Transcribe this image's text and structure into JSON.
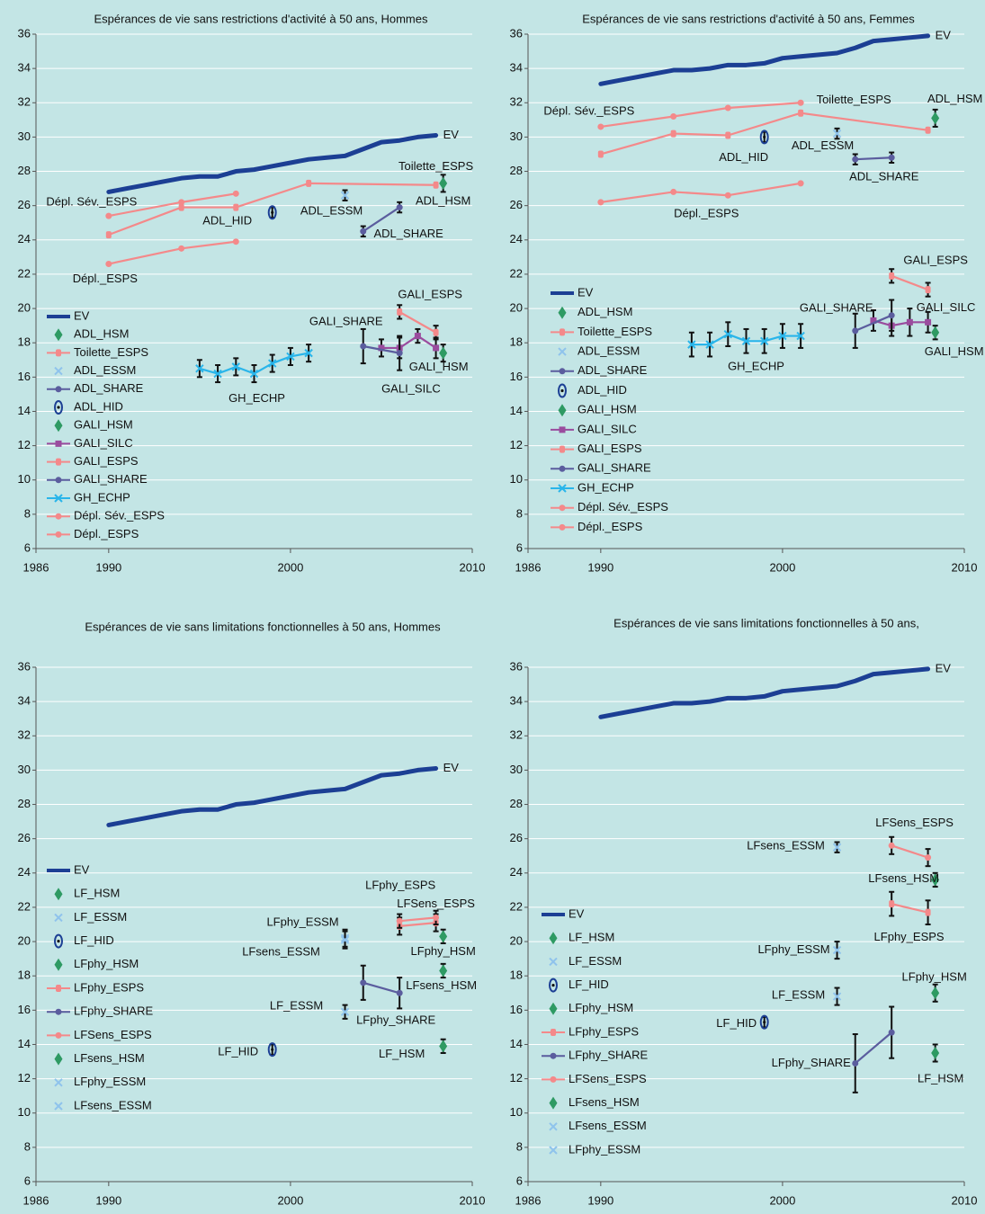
{
  "chart_data": [
    {
      "type": "line",
      "title": "Espérances de vie sans restrictions d'activité à 50 ans, Hommes",
      "xlim": [
        1986,
        2010
      ],
      "xticks": [
        1986,
        1990,
        2000,
        2010
      ],
      "ylim": [
        6,
        36
      ],
      "yticks": [
        6,
        8,
        10,
        12,
        14,
        16,
        18,
        20,
        22,
        24,
        26,
        28,
        30,
        32,
        34,
        36
      ],
      "grid": true,
      "legend": "left",
      "series": [
        {
          "name": "EV",
          "color": "#1c3f94",
          "marker": "none",
          "x": [
            1990,
            1991,
            1992,
            1993,
            1994,
            1995,
            1996,
            1997,
            1998,
            1999,
            2000,
            2001,
            2002,
            2003,
            2004,
            2005,
            2006,
            2007,
            2008
          ],
          "values": [
            26.8,
            27.0,
            27.2,
            27.4,
            27.6,
            27.7,
            27.7,
            28.0,
            28.1,
            28.3,
            28.5,
            28.7,
            28.8,
            28.9,
            29.3,
            29.7,
            29.8,
            30.0,
            30.1
          ]
        },
        {
          "name": "ADL_HSM",
          "color": "#2e9a63",
          "marker": "diamond",
          "x": [
            2008.4
          ],
          "values": [
            27.3
          ],
          "errors": [
            0.5
          ]
        },
        {
          "name": "Toilette_ESPS",
          "color": "#f4898a",
          "marker": "dash",
          "x": [
            1990,
            1994,
            1997,
            2001,
            2008
          ],
          "values": [
            24.3,
            25.9,
            25.9,
            27.3,
            27.2
          ]
        },
        {
          "name": "ADL_ESSM",
          "color": "#8fc3ec",
          "marker": "x",
          "x": [
            2003
          ],
          "values": [
            26.6
          ],
          "errors": [
            0.3
          ]
        },
        {
          "name": "ADL_SHARE",
          "color": "#5b5d9e",
          "marker": "circle",
          "x": [
            2004,
            2006
          ],
          "values": [
            24.5,
            25.9
          ],
          "errors": [
            0.3,
            0.3
          ]
        },
        {
          "name": "ADL_HID",
          "color": "#1c3f94",
          "marker": "ellipse",
          "x": [
            1999
          ],
          "values": [
            25.6
          ],
          "errors": [
            0.3
          ]
        },
        {
          "name": "GALI_HSM",
          "color": "#2e9a63",
          "marker": "diamond",
          "x": [
            2008.4
          ],
          "values": [
            17.4
          ],
          "errors": [
            0.5
          ]
        },
        {
          "name": "GALI_SILC",
          "color": "#9a4c9e",
          "marker": "square",
          "x": [
            2005,
            2006,
            2007,
            2008
          ],
          "values": [
            17.7,
            17.7,
            18.4,
            17.7
          ],
          "errors": [
            0.5,
            0.6,
            0.4,
            0.6
          ]
        },
        {
          "name": "GALI_ESPS",
          "color": "#f4898a",
          "marker": "dash",
          "x": [
            2006,
            2008
          ],
          "values": [
            19.8,
            18.6
          ],
          "errors": [
            0.4,
            0.4
          ]
        },
        {
          "name": "GALI_SHARE",
          "color": "#5b5d9e",
          "marker": "circle",
          "x": [
            2004,
            2006
          ],
          "values": [
            17.8,
            17.4
          ],
          "errors": [
            1.0,
            1.0
          ]
        },
        {
          "name": "GH_ECHP",
          "color": "#29b5ea",
          "marker": "x",
          "x": [
            1995,
            1996,
            1997,
            1998,
            1999,
            2000,
            2001
          ],
          "values": [
            16.5,
            16.2,
            16.6,
            16.2,
            16.8,
            17.2,
            17.4
          ],
          "errors": [
            0.5,
            0.5,
            0.5,
            0.5,
            0.5,
            0.5,
            0.5
          ]
        },
        {
          "name": "Dépl. Sév._ESPS",
          "color": "#f4898a",
          "marker": "circle",
          "x": [
            1990,
            1994,
            1997
          ],
          "values": [
            25.4,
            26.2,
            26.7
          ]
        },
        {
          "name": "Dépl._ESPS",
          "color": "#f4898a",
          "marker": "circle",
          "x": [
            1990,
            1994,
            1997
          ],
          "values": [
            22.6,
            23.5,
            23.9
          ]
        }
      ]
    },
    {
      "type": "line",
      "title": "Espérances de vie sans restrictions d'activité à 50 ans, Femmes",
      "xlim": [
        1986,
        2010
      ],
      "xticks": [
        1986,
        1990,
        2000,
        2010
      ],
      "ylim": [
        6,
        36
      ],
      "yticks": [
        6,
        8,
        10,
        12,
        14,
        16,
        18,
        20,
        22,
        24,
        26,
        28,
        30,
        32,
        34,
        36
      ],
      "grid": true,
      "legend": "left",
      "series": [
        {
          "name": "EV",
          "color": "#1c3f94",
          "marker": "none",
          "x": [
            1990,
            1991,
            1992,
            1993,
            1994,
            1995,
            1996,
            1997,
            1998,
            1999,
            2000,
            2001,
            2002,
            2003,
            2004,
            2005,
            2006,
            2007,
            2008
          ],
          "values": [
            33.1,
            33.3,
            33.5,
            33.7,
            33.9,
            33.9,
            34.0,
            34.2,
            34.2,
            34.3,
            34.6,
            34.7,
            34.8,
            34.9,
            35.2,
            35.6,
            35.7,
            35.8,
            35.9
          ]
        },
        {
          "name": "ADL_HSM",
          "color": "#2e9a63",
          "marker": "diamond",
          "x": [
            2008.4
          ],
          "values": [
            31.1
          ],
          "errors": [
            0.5
          ]
        },
        {
          "name": "Toilette_ESPS",
          "color": "#f4898a",
          "marker": "dash",
          "x": [
            1990,
            1994,
            1997,
            2001,
            2008
          ],
          "values": [
            29.0,
            30.2,
            30.1,
            31.4,
            30.4
          ]
        },
        {
          "name": "ADL_ESSM",
          "color": "#8fc3ec",
          "marker": "x",
          "x": [
            2003
          ],
          "values": [
            30.2
          ],
          "errors": [
            0.3
          ]
        },
        {
          "name": "ADL_SHARE",
          "color": "#5b5d9e",
          "marker": "circle",
          "x": [
            2004,
            2006
          ],
          "values": [
            28.7,
            28.8
          ],
          "errors": [
            0.3,
            0.3
          ]
        },
        {
          "name": "ADL_HID",
          "color": "#1c3f94",
          "marker": "ellipse",
          "x": [
            1999
          ],
          "values": [
            30.0
          ],
          "errors": [
            0.3
          ]
        },
        {
          "name": "GALI_HSM",
          "color": "#2e9a63",
          "marker": "diamond",
          "x": [
            2008.4
          ],
          "values": [
            18.6
          ],
          "errors": [
            0.4
          ]
        },
        {
          "name": "GALI_SILC",
          "color": "#9a4c9e",
          "marker": "square",
          "x": [
            2005,
            2006,
            2007,
            2008
          ],
          "values": [
            19.3,
            19.0,
            19.2,
            19.2
          ],
          "errors": [
            0.6,
            0.6,
            0.8,
            0.6
          ]
        },
        {
          "name": "GALI_ESPS",
          "color": "#f4898a",
          "marker": "dash",
          "x": [
            2006,
            2008
          ],
          "values": [
            21.9,
            21.1
          ],
          "errors": [
            0.4,
            0.4
          ]
        },
        {
          "name": "GALI_SHARE",
          "color": "#5b5d9e",
          "marker": "circle",
          "x": [
            2004,
            2006
          ],
          "values": [
            18.7,
            19.6
          ],
          "errors": [
            1.0,
            0.9
          ]
        },
        {
          "name": "GH_ECHP",
          "color": "#29b5ea",
          "marker": "x",
          "x": [
            1995,
            1996,
            1997,
            1998,
            1999,
            2000,
            2001
          ],
          "values": [
            17.9,
            17.9,
            18.5,
            18.1,
            18.1,
            18.4,
            18.4
          ],
          "errors": [
            0.7,
            0.7,
            0.7,
            0.7,
            0.7,
            0.7,
            0.7
          ]
        },
        {
          "name": "Dépl. Sév._ESPS",
          "color": "#f4898a",
          "marker": "circle",
          "x": [
            1990,
            1994,
            1997,
            2001
          ],
          "values": [
            30.6,
            31.2,
            31.7,
            32.0
          ]
        },
        {
          "name": "Dépl._ESPS",
          "color": "#f4898a",
          "marker": "circle",
          "x": [
            1990,
            1994,
            1997,
            2001
          ],
          "values": [
            26.2,
            26.8,
            26.6,
            27.3
          ]
        }
      ]
    },
    {
      "type": "line",
      "title": "Espérances de vie sans limitations fonctionnelles à 50 ans, Hommes",
      "xlim": [
        1986,
        2010
      ],
      "xticks": [
        1986,
        1990,
        2000,
        2010
      ],
      "ylim": [
        6,
        36
      ],
      "yticks": [
        6,
        8,
        10,
        12,
        14,
        16,
        18,
        20,
        22,
        24,
        26,
        28,
        30,
        32,
        34,
        36
      ],
      "grid": true,
      "legend": "left",
      "series": [
        {
          "name": "EV",
          "color": "#1c3f94",
          "marker": "none",
          "x": [
            1990,
            1991,
            1992,
            1993,
            1994,
            1995,
            1996,
            1997,
            1998,
            1999,
            2000,
            2001,
            2002,
            2003,
            2004,
            2005,
            2006,
            2007,
            2008
          ],
          "values": [
            26.8,
            27.0,
            27.2,
            27.4,
            27.6,
            27.7,
            27.7,
            28.0,
            28.1,
            28.3,
            28.5,
            28.7,
            28.8,
            28.9,
            29.3,
            29.7,
            29.8,
            30.0,
            30.1
          ]
        },
        {
          "name": "LF_HSM",
          "color": "#2e9a63",
          "marker": "diamond",
          "x": [
            2008.4
          ],
          "values": [
            13.9
          ],
          "errors": [
            0.4
          ]
        },
        {
          "name": "LF_ESSM",
          "color": "#8fc3ec",
          "marker": "x",
          "x": [
            2003
          ],
          "values": [
            15.9
          ],
          "errors": [
            0.4
          ]
        },
        {
          "name": "LF_HID",
          "color": "#1c3f94",
          "marker": "ellipse",
          "x": [
            1999
          ],
          "values": [
            13.7
          ],
          "errors": [
            0.3
          ]
        },
        {
          "name": "LFphy_HSM",
          "color": "#2e9a63",
          "marker": "diamond",
          "x": [
            2008.4
          ],
          "values": [
            20.3
          ],
          "errors": [
            0.4
          ]
        },
        {
          "name": "LFphy_ESPS",
          "color": "#f4898a",
          "marker": "dash",
          "x": [
            2006,
            2008
          ],
          "values": [
            20.9,
            21.1
          ],
          "errors": [
            0.5,
            0.5
          ]
        },
        {
          "name": "LFphy_SHARE",
          "color": "#5b5d9e",
          "marker": "circle",
          "x": [
            2004,
            2006
          ],
          "values": [
            17.6,
            17.0
          ],
          "errors": [
            1.0,
            0.9
          ]
        },
        {
          "name": "LFSens_ESPS",
          "color": "#f4898a",
          "marker": "circle",
          "x": [
            2006,
            2008
          ],
          "values": [
            21.2,
            21.4
          ],
          "errors": [
            0.4,
            0.4
          ]
        },
        {
          "name": "LFsens_HSM",
          "color": "#2e9a63",
          "marker": "diamond",
          "x": [
            2008.4
          ],
          "values": [
            18.3
          ],
          "errors": [
            0.4
          ]
        },
        {
          "name": "LFphy_ESSM",
          "color": "#8fc3ec",
          "marker": "x",
          "x": [
            2003
          ],
          "values": [
            20.2
          ],
          "errors": [
            0.5
          ]
        },
        {
          "name": "LFsens_ESSM",
          "color": "#8fc3ec",
          "marker": "x",
          "x": [
            2003
          ],
          "values": [
            20.1
          ],
          "errors": [
            0.5
          ]
        }
      ]
    },
    {
      "type": "line",
      "title": "Espérances de vie sans limitations fonctionnelles à 50 ans,",
      "xlim": [
        1986,
        2010
      ],
      "xticks": [
        1986,
        1990,
        2000,
        2010
      ],
      "ylim": [
        6,
        36
      ],
      "yticks": [
        6,
        8,
        10,
        12,
        14,
        16,
        18,
        20,
        22,
        24,
        26,
        28,
        30,
        32,
        34,
        36
      ],
      "grid": true,
      "legend": "left",
      "series": [
        {
          "name": "EV",
          "color": "#1c3f94",
          "marker": "none",
          "x": [
            1990,
            1991,
            1992,
            1993,
            1994,
            1995,
            1996,
            1997,
            1998,
            1999,
            2000,
            2001,
            2002,
            2003,
            2004,
            2005,
            2006,
            2007,
            2008
          ],
          "values": [
            33.1,
            33.3,
            33.5,
            33.7,
            33.9,
            33.9,
            34.0,
            34.2,
            34.2,
            34.3,
            34.6,
            34.7,
            34.8,
            34.9,
            35.2,
            35.6,
            35.7,
            35.8,
            35.9
          ]
        },
        {
          "name": "LF_HSM",
          "color": "#2e9a63",
          "marker": "diamond",
          "x": [
            2008.4
          ],
          "values": [
            13.5
          ],
          "errors": [
            0.5
          ]
        },
        {
          "name": "LF_ESSM",
          "color": "#8fc3ec",
          "marker": "x",
          "x": [
            2003
          ],
          "values": [
            16.8
          ],
          "errors": [
            0.5
          ]
        },
        {
          "name": "LF_HID",
          "color": "#1c3f94",
          "marker": "ellipse",
          "x": [
            1999
          ],
          "values": [
            15.3
          ],
          "errors": [
            0.3
          ]
        },
        {
          "name": "LFphy_HSM",
          "color": "#2e9a63",
          "marker": "diamond",
          "x": [
            2008.4
          ],
          "values": [
            17.0
          ],
          "errors": [
            0.5
          ]
        },
        {
          "name": "LFphy_ESPS",
          "color": "#f4898a",
          "marker": "dash",
          "x": [
            2006,
            2008
          ],
          "values": [
            22.2,
            21.7
          ],
          "errors": [
            0.7,
            0.7
          ]
        },
        {
          "name": "LFphy_SHARE",
          "color": "#5b5d9e",
          "marker": "circle",
          "x": [
            2004,
            2006
          ],
          "values": [
            12.9,
            14.7
          ],
          "errors": [
            1.7,
            1.5
          ]
        },
        {
          "name": "LFSens_ESPS",
          "color": "#f4898a",
          "marker": "circle",
          "x": [
            2006,
            2008
          ],
          "values": [
            25.6,
            24.9
          ],
          "errors": [
            0.5,
            0.5
          ]
        },
        {
          "name": "LFsens_HSM",
          "color": "#2e9a63",
          "marker": "diamond",
          "x": [
            2008.4
          ],
          "values": [
            23.6
          ],
          "errors": [
            0.4
          ]
        },
        {
          "name": "LFsens_ESSM",
          "color": "#8fc3ec",
          "marker": "x",
          "x": [
            2003
          ],
          "values": [
            25.5
          ],
          "errors": [
            0.3
          ]
        },
        {
          "name": "LFphy_ESSM",
          "color": "#8fc3ec",
          "marker": "x",
          "x": [
            2003
          ],
          "values": [
            19.5
          ],
          "errors": [
            0.5
          ]
        }
      ]
    }
  ]
}
